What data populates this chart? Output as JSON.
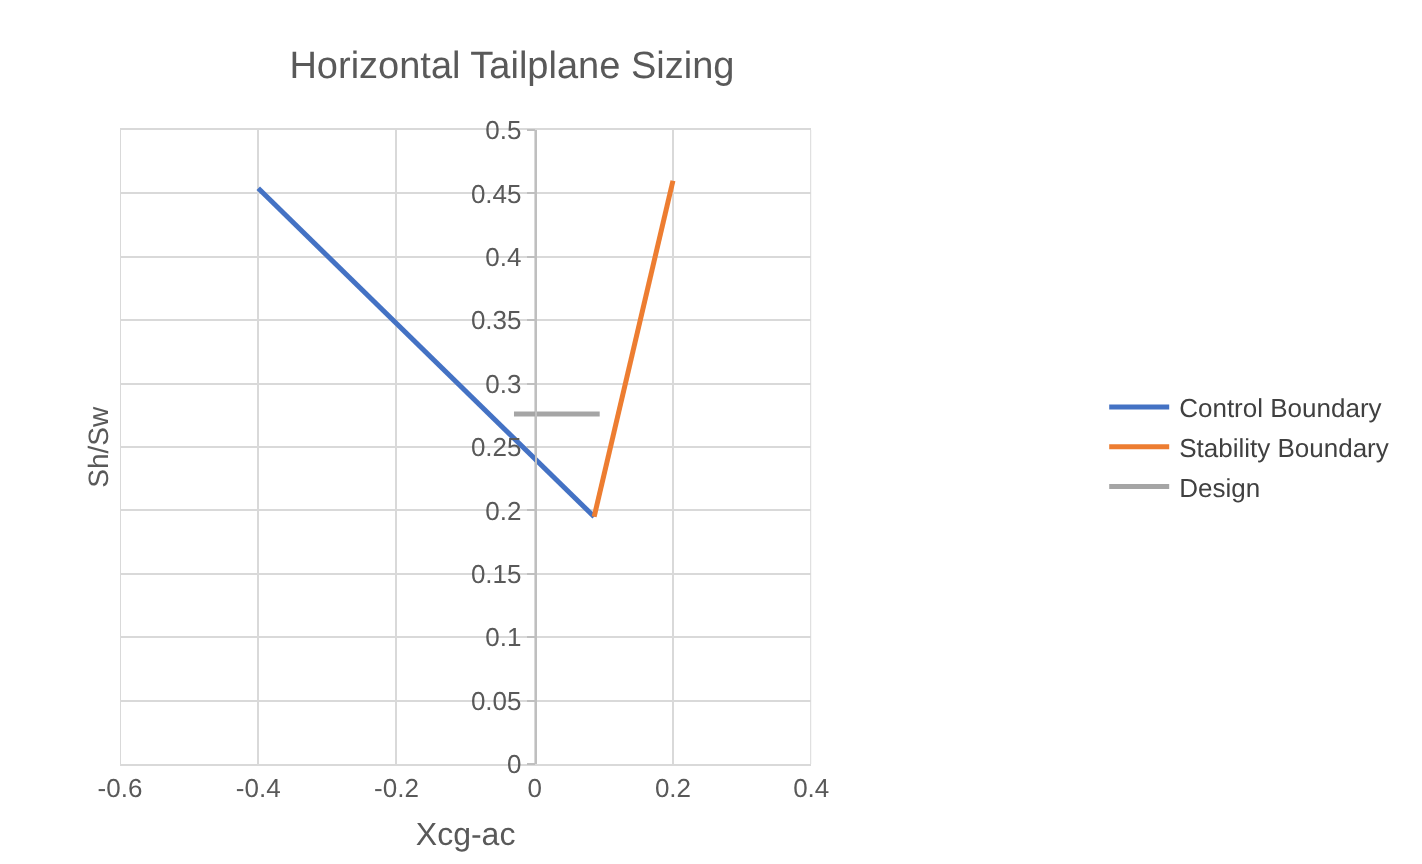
{
  "chart_data": {
    "type": "line",
    "title": "Horizontal Tailplane Sizing",
    "xlabel": "Xcg-ac",
    "ylabel": "Sh/Sw",
    "xlim": [
      -0.6,
      0.4
    ],
    "xticks": [
      -0.6,
      -0.4,
      -0.2,
      0,
      0.2,
      0.4
    ],
    "ylim": [
      0,
      0.5
    ],
    "yticks": [
      0,
      0.05,
      0.1,
      0.15,
      0.2,
      0.25,
      0.3,
      0.35,
      0.4,
      0.45,
      0.5
    ],
    "grid": true,
    "legend": "right",
    "marker": "none",
    "line_style": "solid",
    "series": [
      {
        "name": "Control Boundary",
        "color": "#4472c4",
        "x": [
          -0.4,
          0.086
        ],
        "values": [
          0.454,
          0.195
        ]
      },
      {
        "name": "Stability Boundary",
        "color": "#ed7d31",
        "x": [
          0.086,
          0.2
        ],
        "values": [
          0.195,
          0.46
        ]
      },
      {
        "name": "Design",
        "color": "#a5a5a5",
        "x": [
          -0.03,
          0.094
        ],
        "values": [
          0.276,
          0.276
        ]
      }
    ]
  }
}
